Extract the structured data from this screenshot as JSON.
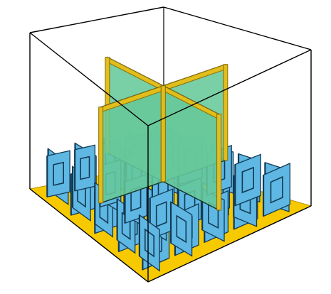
{
  "colors": {
    "background": "#ffffff",
    "floor": "#f7c900",
    "floor_edge": "#b88f00",
    "partition_small": "#5fb7e3",
    "partition_small_edge": "#123a55",
    "partition_large": "#66c89a",
    "partition_large_edge": "#14362a",
    "frame_trim": "#e1be1b",
    "frame_trim_dark": "#8a6b00",
    "wireframe": "#000000"
  },
  "icons": {
    "floor": "yellow-floor-plane",
    "small_partitions": "blue-cubicle-partition-grid",
    "large_partitions": "green-cross-partition",
    "wireframe_box": "wireframe-cuboid"
  }
}
